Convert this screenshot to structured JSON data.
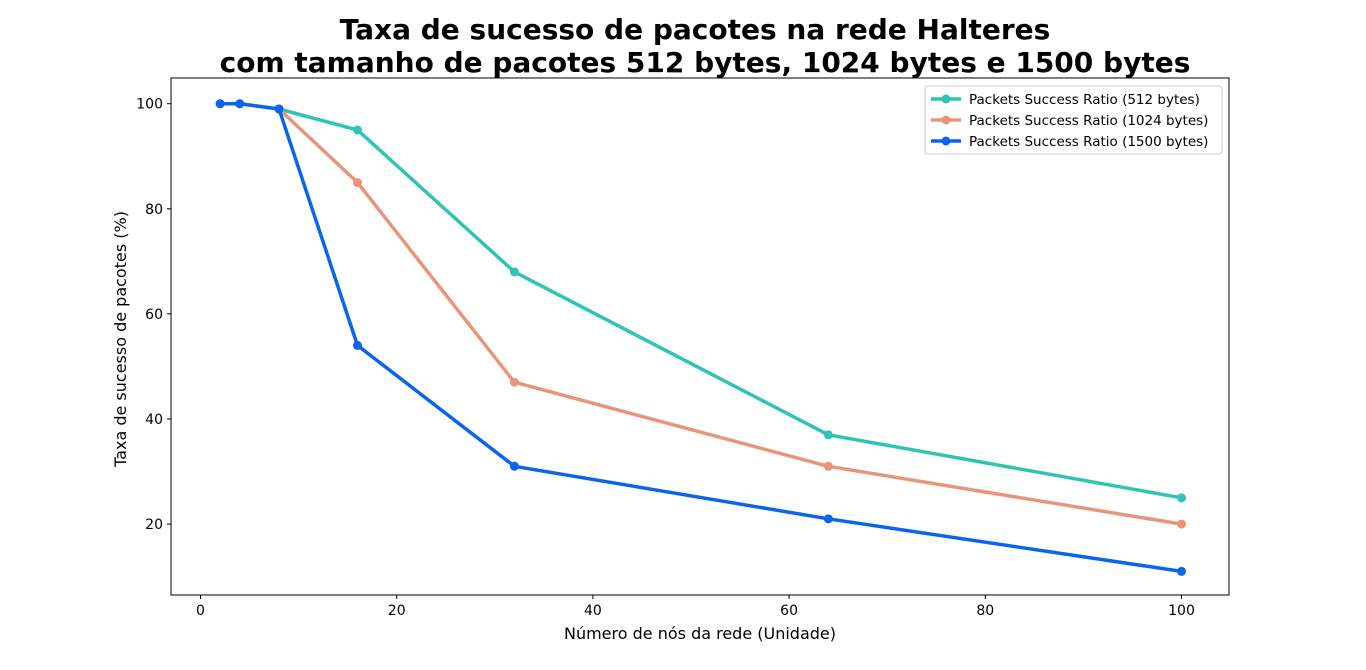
{
  "chart_data": {
    "type": "line",
    "title_line1": "Taxa de sucesso de pacotes na rede Halteres",
    "title_line2": "com tamanho de pacotes 512 bytes, 1024 bytes e 1500 bytes",
    "xlabel": "Número de nós da rede (Unidade)",
    "ylabel": "Taxa de sucesso de pacotes (%)",
    "xlim": [
      -3,
      105
    ],
    "ylim": [
      7,
      105
    ],
    "xticks": [
      0,
      20,
      40,
      60,
      80,
      100
    ],
    "yticks": [
      20,
      40,
      60,
      80,
      100
    ],
    "grid": false,
    "legend_position": "top-right",
    "series": [
      {
        "name": "Packets Success Ratio (512 bytes)",
        "color": "#2ec4b6",
        "x": [
          2,
          4,
          8,
          16,
          32,
          64,
          100
        ],
        "y": [
          100,
          100,
          99,
          95,
          68,
          37,
          25
        ]
      },
      {
        "name": "Packets Success Ratio (1024 bytes)",
        "color": "#e8957a",
        "x": [
          2,
          4,
          8,
          16,
          32,
          64,
          100
        ],
        "y": [
          100,
          100,
          99,
          85,
          47,
          31,
          20
        ]
      },
      {
        "name": "Packets Success Ratio (1500 bytes)",
        "color": "#0a64f0",
        "x": [
          2,
          4,
          8,
          16,
          32,
          64,
          100
        ],
        "y": [
          100,
          100,
          99,
          54,
          31,
          21,
          11
        ]
      }
    ]
  }
}
